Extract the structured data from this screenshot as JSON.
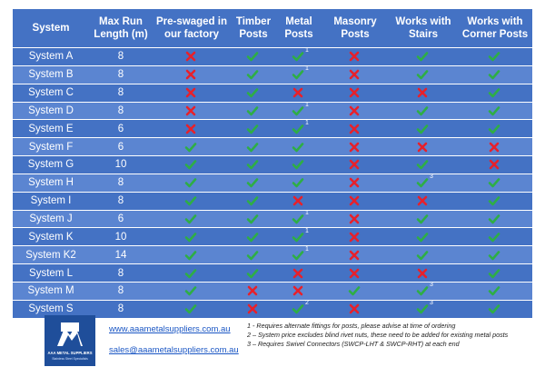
{
  "headers": [
    "System",
    "Max Run\nLength (m)",
    "Pre-swaged in\nour factory",
    "Timber\nPosts",
    "Metal\nPosts",
    "Masonry\nPosts",
    "Works with\nStairs",
    "Works with\nCorner Posts"
  ],
  "rows": [
    {
      "system": "System A",
      "length": "8",
      "marks": [
        "x",
        "c",
        "c1",
        "x",
        "c",
        "c"
      ]
    },
    {
      "system": "System B",
      "length": "8",
      "marks": [
        "x",
        "c",
        "c1",
        "x",
        "c",
        "c"
      ]
    },
    {
      "system": "System C",
      "length": "8",
      "marks": [
        "x",
        "c",
        "x",
        "x",
        "x",
        "c"
      ]
    },
    {
      "system": "System D",
      "length": "8",
      "marks": [
        "x",
        "c",
        "c1",
        "x",
        "c",
        "c"
      ]
    },
    {
      "system": "System E",
      "length": "6",
      "marks": [
        "x",
        "c",
        "c1",
        "x",
        "c",
        "c"
      ]
    },
    {
      "system": "System F",
      "length": "6",
      "marks": [
        "c",
        "c",
        "c",
        "x",
        "x",
        "x"
      ]
    },
    {
      "system": "System G",
      "length": "10",
      "marks": [
        "c",
        "c",
        "c",
        "x",
        "c",
        "x"
      ]
    },
    {
      "system": "System H",
      "length": "8",
      "marks": [
        "c",
        "c",
        "c",
        "x",
        "c3",
        "c"
      ]
    },
    {
      "system": "System I",
      "length": "8",
      "marks": [
        "c",
        "c",
        "x",
        "x",
        "x",
        "c"
      ]
    },
    {
      "system": "System J",
      "length": "6",
      "marks": [
        "c",
        "c",
        "c1",
        "x",
        "c",
        "c"
      ]
    },
    {
      "system": "System K",
      "length": "10",
      "marks": [
        "c",
        "c",
        "c1",
        "x",
        "c",
        "c"
      ]
    },
    {
      "system": "System K2",
      "length": "14",
      "marks": [
        "c",
        "c",
        "c1",
        "x",
        "c",
        "c"
      ]
    },
    {
      "system": "System L",
      "length": "8",
      "marks": [
        "c",
        "c",
        "x",
        "x",
        "x",
        "c"
      ]
    },
    {
      "system": "System M",
      "length": "8",
      "marks": [
        "c",
        "x",
        "x",
        "c",
        "c3",
        "c"
      ]
    },
    {
      "system": "System S",
      "length": "8",
      "marks": [
        "c",
        "x",
        "c2",
        "x",
        "c3",
        "c"
      ]
    }
  ],
  "colors": {
    "check": "#2eae45",
    "cross": "#e8202a",
    "header": "#4472c4",
    "row_alt": "#5b85d1"
  },
  "icons": {
    "check": "check-icon",
    "cross": "cross-icon"
  },
  "footer": {
    "website": "www.aaametalsuppliers.com.au",
    "email": "sales@aaametalsuppliers.com.au",
    "logo_name": "AAA METAL SUPPLIERS",
    "logo_tagline": "Stainless Steel Specialists",
    "notes": [
      "1 - Requires alternate fittings for posts, please advise at time of ordering",
      "2 – System price excludes blind rivet nuts, these need to be added for existing metal posts",
      "3 – Requires Swivel Connectors (SWCP-LHT & SWCP-RHT) at each end"
    ]
  }
}
